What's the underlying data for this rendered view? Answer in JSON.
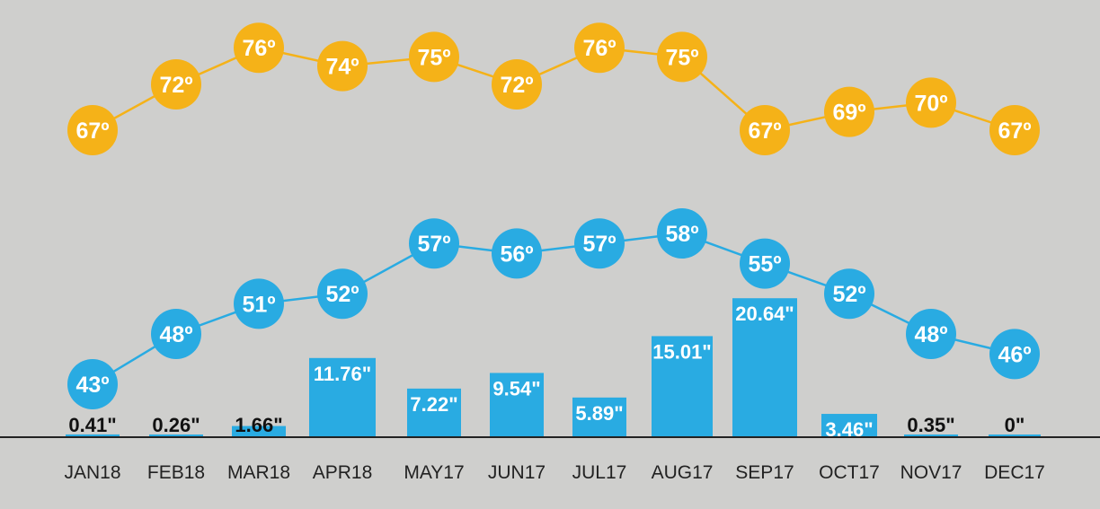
{
  "chart_data": {
    "type": "bar",
    "categories": [
      "JAN18",
      "FEB18",
      "MAR18",
      "APR18",
      "MAY17",
      "JUN17",
      "JUL17",
      "AUG17",
      "SEP17",
      "OCT17",
      "NOV17",
      "DEC17"
    ],
    "series": [
      {
        "type": "bar",
        "values": [
          0.41,
          0.26,
          1.66,
          11.76,
          7.22,
          9.54,
          5.89,
          15.01,
          20.64,
          3.46,
          0.35,
          0
        ],
        "labels": [
          "0.41\"",
          "0.26\"",
          "1.66\"",
          "11.76\"",
          "7.22\"",
          "9.54\"",
          "5.89\"",
          "15.01\"",
          "20.64\"",
          "3.46\"",
          "0.35\"",
          "0\""
        ],
        "color": "#29abe2"
      },
      {
        "type": "line",
        "values": [
          67,
          72,
          76,
          74,
          75,
          72,
          76,
          75,
          67,
          69,
          70,
          67
        ],
        "labels": [
          "67º",
          "72º",
          "76º",
          "74º",
          "75º",
          "72º",
          "76º",
          "75º",
          "67º",
          "69º",
          "70º",
          "67º"
        ],
        "color": "#f5b218"
      },
      {
        "type": "line",
        "values": [
          43,
          48,
          51,
          52,
          57,
          56,
          57,
          58,
          55,
          52,
          48,
          46
        ],
        "labels": [
          "43º",
          "48º",
          "51º",
          "52º",
          "57º",
          "56º",
          "57º",
          "58º",
          "55º",
          "52º",
          "48º",
          "46º"
        ],
        "color": "#29abe2"
      }
    ],
    "title": "",
    "xlabel": "",
    "ylabel": "",
    "legend": "none",
    "grid": false,
    "background_color": "#cfcfcd",
    "axis_color": "#222222"
  }
}
